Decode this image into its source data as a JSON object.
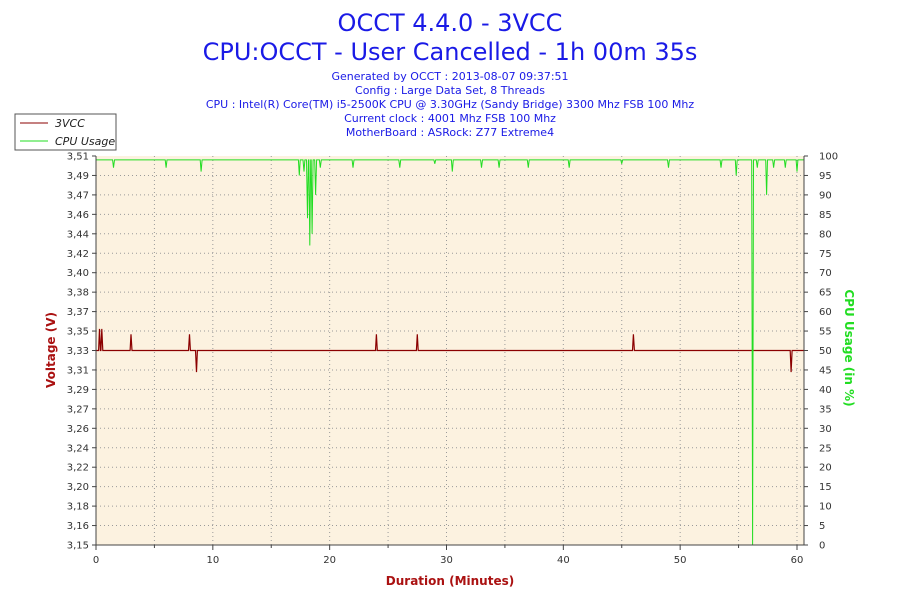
{
  "header": {
    "title": "OCCT 4.4.0 - 3VCC",
    "subtitle": "CPU:OCCT - User Cancelled - 1h 00m 35s",
    "info": [
      "Generated by OCCT : 2013-08-07 09:37:51",
      "Config : Large Data Set, 8 Threads",
      "CPU : Intel(R) Core(TM) i5-2500K CPU @ 3.30GHz (Sandy Bridge) 3300 Mhz FSB 100 Mhz",
      "Current clock : 4001 Mhz FSB 100 Mhz",
      "MotherBoard : ASRock: Z77 Extreme4"
    ]
  },
  "colors": {
    "voltage": "#8b0000",
    "cpu": "#22dd22",
    "title": "#1a1ae6",
    "plot_bg": "#fcf2e0",
    "grid": "#9a9a9a",
    "axis_title": "#aa1111"
  },
  "chart_data": {
    "type": "line",
    "title": "OCCT 4.4.0 - 3VCC",
    "xlabel": "Duration (Minutes)",
    "ylabel": "Voltage (V)",
    "y2label": "CPU Usage (in %)",
    "xlim": [
      0,
      60.6
    ],
    "ylim": [
      3.15,
      3.51
    ],
    "y2lim": [
      0,
      100
    ],
    "x_ticks": [
      0,
      10,
      20,
      30,
      40,
      50,
      60
    ],
    "y_ticks": [
      "3,15",
      "3,16",
      "3,18",
      "3,20",
      "3,22",
      "3,24",
      "3,26",
      "3,27",
      "3,29",
      "3,31",
      "3,33",
      "3,35",
      "3,37",
      "3,38",
      "3,40",
      "3,42",
      "3,44",
      "3,46",
      "3,47",
      "3,49",
      "3,51"
    ],
    "y2_ticks": [
      0,
      5,
      10,
      15,
      20,
      25,
      30,
      35,
      40,
      45,
      50,
      55,
      60,
      65,
      70,
      75,
      80,
      85,
      90,
      95,
      100
    ],
    "grid": true,
    "legend_position": "top-left",
    "series": [
      {
        "name": "3VCC",
        "axis": "left",
        "baseline": 3.33,
        "spikes": [
          {
            "x": 0.3,
            "y": 3.35
          },
          {
            "x": 0.5,
            "y": 3.35
          },
          {
            "x": 3.0,
            "y": 3.345
          },
          {
            "x": 8.0,
            "y": 3.345
          },
          {
            "x": 8.6,
            "y": 3.31
          },
          {
            "x": 24.0,
            "y": 3.345
          },
          {
            "x": 27.5,
            "y": 3.345
          },
          {
            "x": 46.0,
            "y": 3.345
          },
          {
            "x": 59.5,
            "y": 3.31
          }
        ]
      },
      {
        "name": "CPU Usage",
        "axis": "right",
        "baseline": 99,
        "dips": [
          {
            "x": 1.5,
            "y": 97
          },
          {
            "x": 6.0,
            "y": 97
          },
          {
            "x": 9.0,
            "y": 96
          },
          {
            "x": 17.4,
            "y": 95
          },
          {
            "x": 17.8,
            "y": 96
          },
          {
            "x": 18.1,
            "y": 84
          },
          {
            "x": 18.3,
            "y": 77
          },
          {
            "x": 18.5,
            "y": 80
          },
          {
            "x": 18.8,
            "y": 90
          },
          {
            "x": 19.2,
            "y": 97
          },
          {
            "x": 22.0,
            "y": 97
          },
          {
            "x": 26.0,
            "y": 97
          },
          {
            "x": 29.0,
            "y": 98
          },
          {
            "x": 30.5,
            "y": 96
          },
          {
            "x": 33.0,
            "y": 97
          },
          {
            "x": 34.5,
            "y": 97
          },
          {
            "x": 37.0,
            "y": 97
          },
          {
            "x": 40.5,
            "y": 97
          },
          {
            "x": 45.0,
            "y": 98
          },
          {
            "x": 49.0,
            "y": 97
          },
          {
            "x": 53.5,
            "y": 97
          },
          {
            "x": 54.8,
            "y": 95
          },
          {
            "x": 56.2,
            "y": 0
          },
          {
            "x": 56.6,
            "y": 97
          },
          {
            "x": 57.4,
            "y": 90
          },
          {
            "x": 58.0,
            "y": 97
          },
          {
            "x": 59.0,
            "y": 97
          },
          {
            "x": 60.0,
            "y": 96
          }
        ]
      }
    ]
  }
}
